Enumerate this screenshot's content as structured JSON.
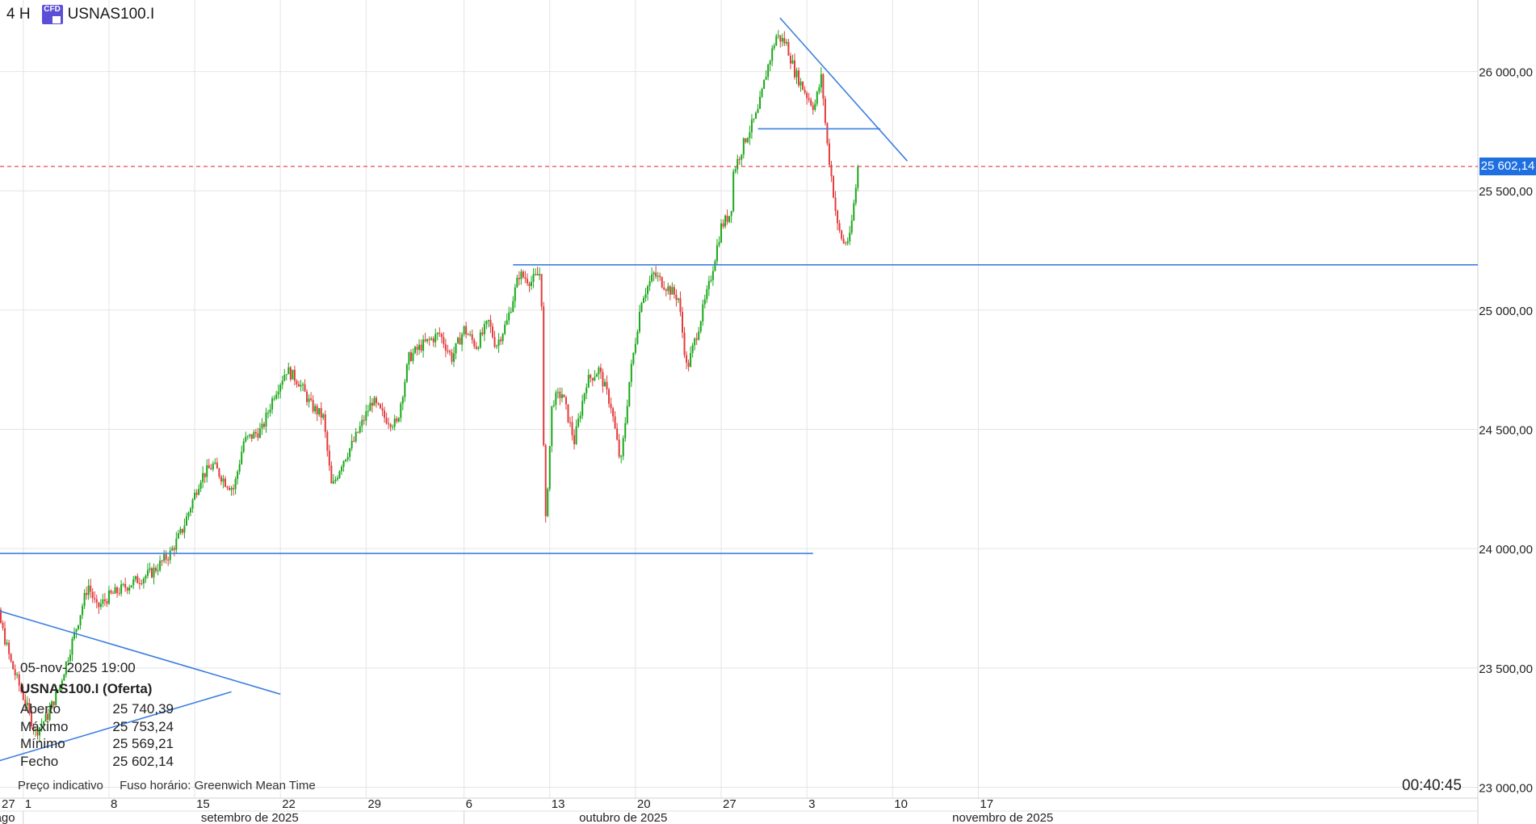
{
  "header": {
    "timeframe": "4 H",
    "symbol": "USNAS100.I",
    "badge_text": "CFD"
  },
  "ohlc_box": {
    "datetime": "05-nov-2025 19:00",
    "title": "USNAS100.I (Oferta)",
    "rows": [
      {
        "label": "Aberto",
        "value": "25 740,39"
      },
      {
        "label": "Máximo",
        "value": "25 753,24"
      },
      {
        "label": "Mínimo",
        "value": "25 569,21"
      },
      {
        "label": "Fecho",
        "value": "25 602,14"
      }
    ]
  },
  "footer": {
    "price_type": "Preço indicativo",
    "timezone": "Fuso horário: Greenwich Mean Time",
    "clock": "00:40:45"
  },
  "current_price_label": "25 602,14",
  "colors": {
    "up": "#1aa71a",
    "down": "#e23b3b",
    "trendline": "#3d7fe0",
    "price_line": "#e53935",
    "grid": "#e4e4e4",
    "tag": "#1e6fe0"
  },
  "chart_data": {
    "type": "candlestick",
    "ylim": [
      22900,
      26300
    ],
    "y_ticks": [
      {
        "value": 23000,
        "label": "23 000,00"
      },
      {
        "value": 23500,
        "label": "23 500,00"
      },
      {
        "value": 24000,
        "label": "24 000,00"
      },
      {
        "value": 24500,
        "label": "24 500,00"
      },
      {
        "value": 25000,
        "label": "25 000,00"
      },
      {
        "value": 25500,
        "label": "25 500,00"
      },
      {
        "value": 26000,
        "label": "26 000,00"
      }
    ],
    "x_range_days": [
      -1.9,
      118.8
    ],
    "x_ticks_day": [
      {
        "day": 0,
        "label": "1"
      },
      {
        "day": 7,
        "label": "8"
      },
      {
        "day": 14,
        "label": "15"
      },
      {
        "day": 21,
        "label": "22"
      },
      {
        "day": 28,
        "label": "29"
      },
      {
        "day": 36,
        "label": "6"
      },
      {
        "day": 43,
        "label": "13"
      },
      {
        "day": 50,
        "label": "20"
      },
      {
        "day": 57,
        "label": "27"
      },
      {
        "day": 64,
        "label": "3"
      },
      {
        "day": 71,
        "label": "10"
      },
      {
        "day": 78,
        "label": "17"
      }
    ],
    "x_tick_edge": {
      "day": -4,
      "label": "27"
    },
    "x_months": [
      {
        "day": -1.5,
        "label": "ago"
      },
      {
        "day": 18.5,
        "label": "setembro de 2025"
      },
      {
        "day": 49,
        "label": "outubro de 2025"
      },
      {
        "day": 80,
        "label": "novembro de 2025"
      }
    ],
    "month_separators_day": [
      0,
      36
    ],
    "keypoints": [
      {
        "day": -4.0,
        "price": 23450
      },
      {
        "day": -3.0,
        "price": 23550
      },
      {
        "day": -2.0,
        "price": 23720
      },
      {
        "day": -1.0,
        "price": 23520
      },
      {
        "day": 0.0,
        "price": 23380
      },
      {
        "day": 1.0,
        "price": 23230
      },
      {
        "day": 2.0,
        "price": 23300
      },
      {
        "day": 3.0,
        "price": 23430
      },
      {
        "day": 4.5,
        "price": 23700
      },
      {
        "day": 5.3,
        "price": 23850
      },
      {
        "day": 6.0,
        "price": 23750
      },
      {
        "day": 7.0,
        "price": 23800
      },
      {
        "day": 9.0,
        "price": 23860
      },
      {
        "day": 10.5,
        "price": 23900
      },
      {
        "day": 12.0,
        "price": 23980
      },
      {
        "day": 13.0,
        "price": 24080
      },
      {
        "day": 14.5,
        "price": 24300
      },
      {
        "day": 15.5,
        "price": 24350
      },
      {
        "day": 16.5,
        "price": 24280
      },
      {
        "day": 17.2,
        "price": 24250
      },
      {
        "day": 18.0,
        "price": 24450
      },
      {
        "day": 19.5,
        "price": 24500
      },
      {
        "day": 20.5,
        "price": 24650
      },
      {
        "day": 21.5,
        "price": 24750
      },
      {
        "day": 22.5,
        "price": 24700
      },
      {
        "day": 23.5,
        "price": 24600
      },
      {
        "day": 24.5,
        "price": 24550
      },
      {
        "day": 25.2,
        "price": 24250
      },
      {
        "day": 26.0,
        "price": 24360
      },
      {
        "day": 27.0,
        "price": 24450
      },
      {
        "day": 28.5,
        "price": 24620
      },
      {
        "day": 29.5,
        "price": 24550
      },
      {
        "day": 30.5,
        "price": 24520
      },
      {
        "day": 31.5,
        "price": 24800
      },
      {
        "day": 32.5,
        "price": 24850
      },
      {
        "day": 34.0,
        "price": 24900
      },
      {
        "day": 35.0,
        "price": 24800
      },
      {
        "day": 36.0,
        "price": 24920
      },
      {
        "day": 37.0,
        "price": 24850
      },
      {
        "day": 38.0,
        "price": 24950
      },
      {
        "day": 38.6,
        "price": 24850
      },
      {
        "day": 39.5,
        "price": 24950
      },
      {
        "day": 40.5,
        "price": 25150
      },
      {
        "day": 41.5,
        "price": 25120
      },
      {
        "day": 42.3,
        "price": 25160
      },
      {
        "day": 42.6,
        "price": 24050
      },
      {
        "day": 43.2,
        "price": 24620
      },
      {
        "day": 44.0,
        "price": 24650
      },
      {
        "day": 45.0,
        "price": 24450
      },
      {
        "day": 46.0,
        "price": 24700
      },
      {
        "day": 47.0,
        "price": 24750
      },
      {
        "day": 48.0,
        "price": 24600
      },
      {
        "day": 48.8,
        "price": 24350
      },
      {
        "day": 49.5,
        "price": 24700
      },
      {
        "day": 50.5,
        "price": 25050
      },
      {
        "day": 51.5,
        "price": 25150
      },
      {
        "day": 52.5,
        "price": 25100
      },
      {
        "day": 53.5,
        "price": 25050
      },
      {
        "day": 54.2,
        "price": 24750
      },
      {
        "day": 55.0,
        "price": 24900
      },
      {
        "day": 56.0,
        "price": 25100
      },
      {
        "day": 57.0,
        "price": 25350
      },
      {
        "day": 57.8,
        "price": 25410
      },
      {
        "day": 58.0,
        "price": 25580
      },
      {
        "day": 59.0,
        "price": 25720
      },
      {
        "day": 60.0,
        "price": 25830
      },
      {
        "day": 60.7,
        "price": 26000
      },
      {
        "day": 61.5,
        "price": 26150
      },
      {
        "day": 62.3,
        "price": 26120
      },
      {
        "day": 63.0,
        "price": 26000
      },
      {
        "day": 64.0,
        "price": 25900
      },
      {
        "day": 64.6,
        "price": 25850
      },
      {
        "day": 65.2,
        "price": 25980
      },
      {
        "day": 65.6,
        "price": 25720
      },
      {
        "day": 66.0,
        "price": 25560
      },
      {
        "day": 66.5,
        "price": 25350
      },
      {
        "day": 67.0,
        "price": 25280
      },
      {
        "day": 67.5,
        "price": 25300
      },
      {
        "day": 68.2,
        "price": 25602
      }
    ],
    "lines": [
      {
        "from": {
          "day": -3.9,
          "price": 23980
        },
        "to": {
          "day": 64.5,
          "price": 23980
        }
      },
      {
        "from": {
          "day": 40.0,
          "price": 25190
        },
        "to": {
          "day": 118.8,
          "price": 25190
        }
      },
      {
        "from": {
          "day": 61.8,
          "price": 26225
        },
        "to": {
          "day": 72.2,
          "price": 25625
        }
      },
      {
        "from": {
          "day": 60.0,
          "price": 25760
        },
        "to": {
          "day": 70.0,
          "price": 25760
        }
      },
      {
        "from": {
          "day": -4.0,
          "price": 23770
        },
        "to": {
          "day": 21.0,
          "price": 23390
        }
      },
      {
        "from": {
          "day": -4.0,
          "price": 23080
        },
        "to": {
          "day": 17.0,
          "price": 23400
        }
      }
    ],
    "current_price": 25602.14
  }
}
